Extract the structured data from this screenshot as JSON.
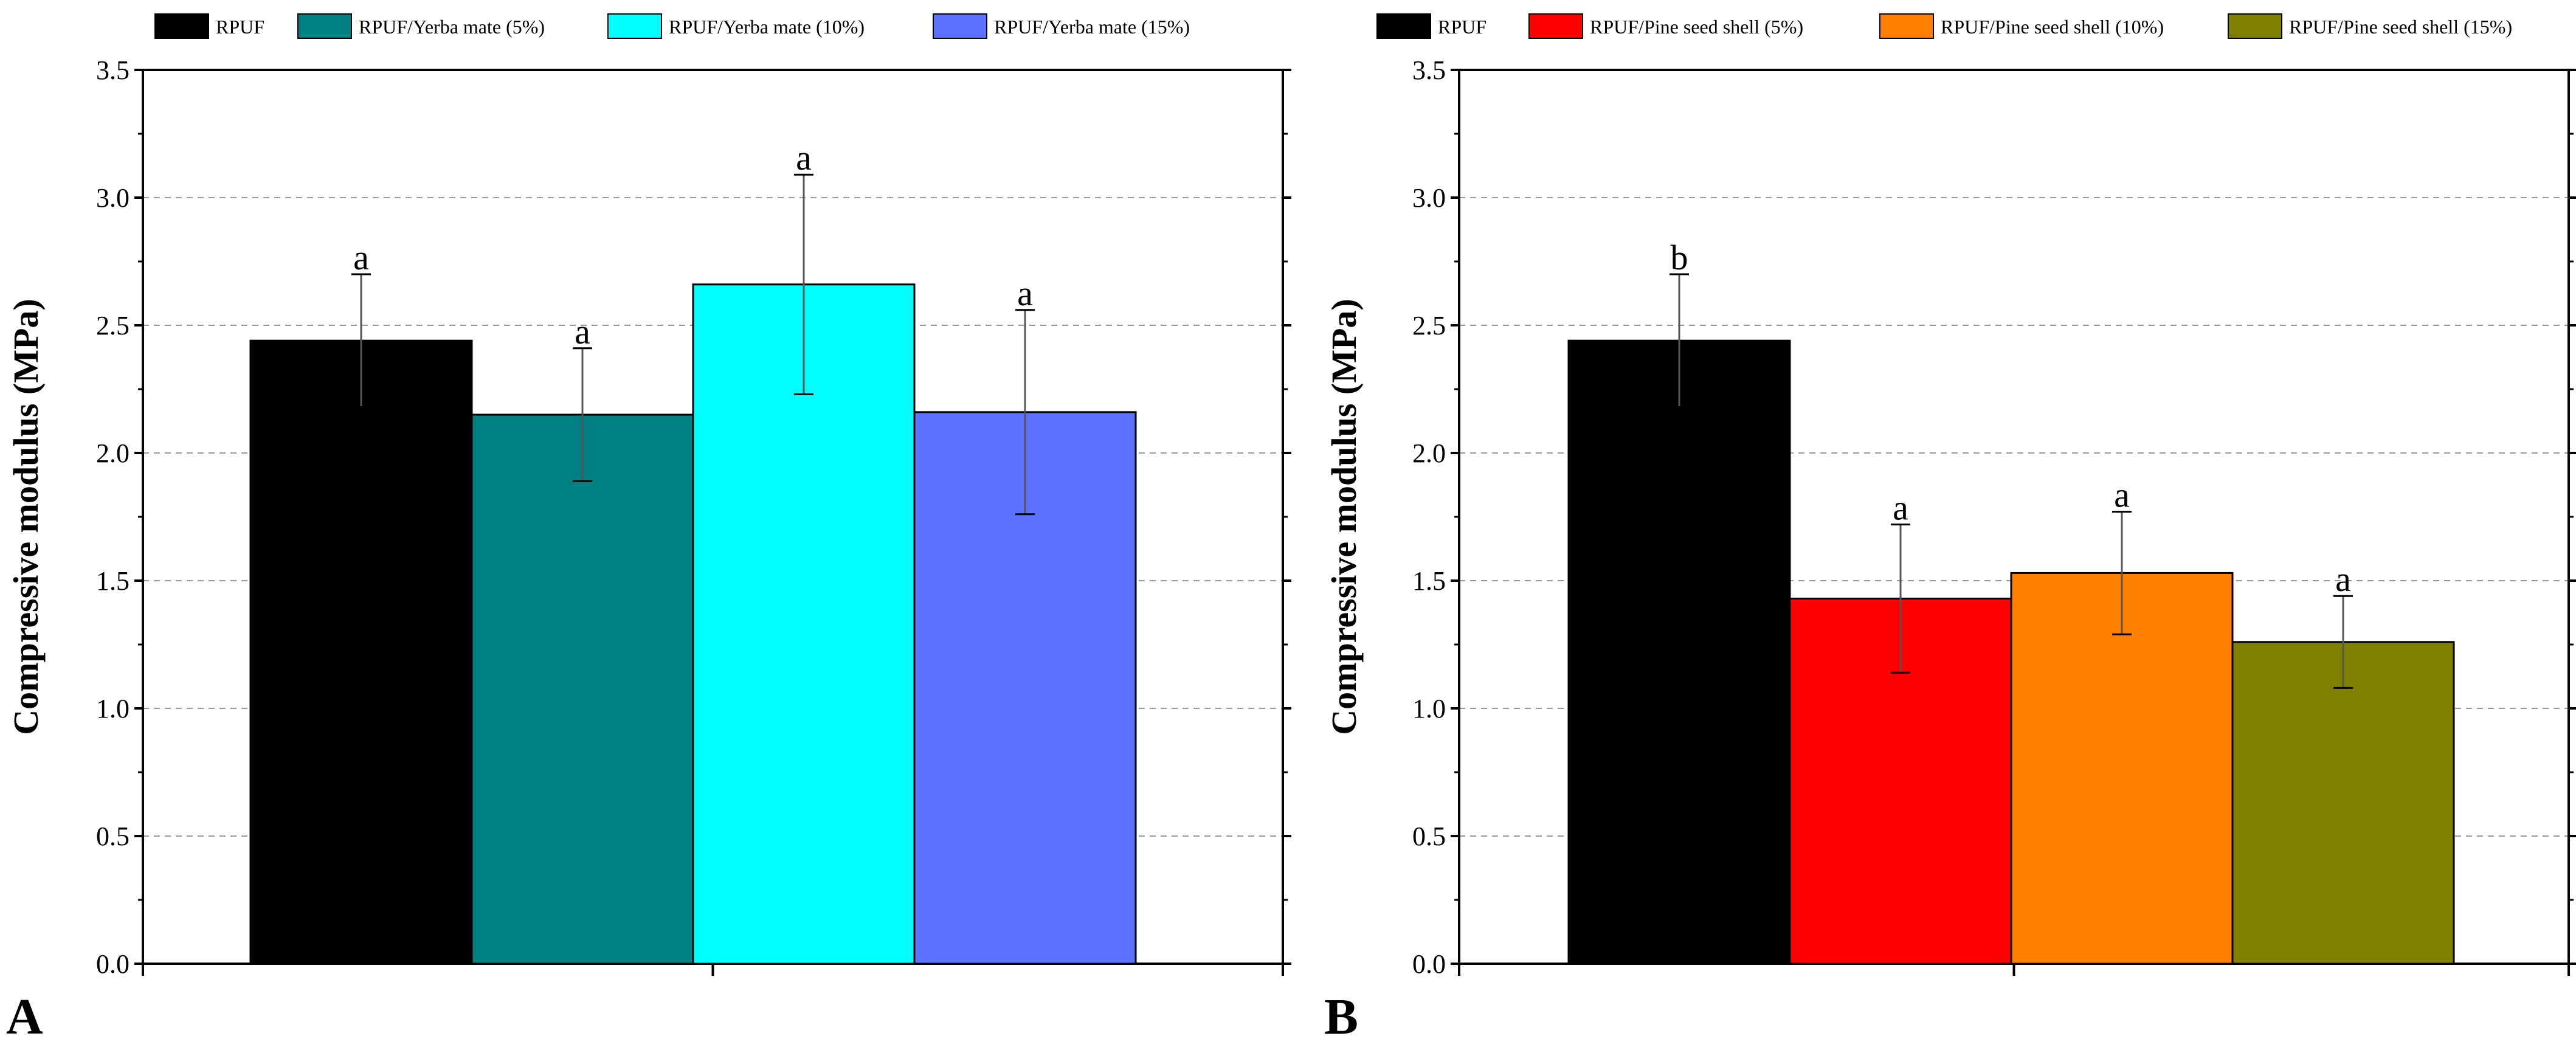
{
  "chart_data": [
    {
      "type": "bar",
      "panel_label": "A",
      "title": "",
      "xlabel": "",
      "ylabel": "Compressive modulus (MPa)",
      "ylim": [
        0,
        3.5
      ],
      "yticks": [
        0.0,
        0.5,
        1.0,
        1.5,
        2.0,
        2.5,
        3.0,
        3.5
      ],
      "ytick_labels": [
        "0.0",
        "0.5",
        "1.0",
        "1.5",
        "2.0",
        "2.5",
        "3.0",
        "3.5"
      ],
      "grid": "horizontal dashed",
      "legend_position": "top",
      "series": [
        {
          "name": "RPUF",
          "value": 2.44,
          "error": 0.26,
          "letter": "a",
          "color": "#000000"
        },
        {
          "name": "RPUF/Yerba mate (5%)",
          "value": 2.15,
          "error": 0.26,
          "letter": "a",
          "color": "#008080"
        },
        {
          "name": "RPUF/Yerba mate (10%)",
          "value": 2.66,
          "error": 0.43,
          "letter": "a",
          "color": "#00FFFF"
        },
        {
          "name": "RPUF/Yerba mate (15%)",
          "value": 2.16,
          "error": 0.4,
          "letter": "a",
          "color": "#5C73FF"
        }
      ]
    },
    {
      "type": "bar",
      "panel_label": "B",
      "title": "",
      "xlabel": "",
      "ylabel": "Compressive modulus (MPa)",
      "ylim": [
        0,
        3.5
      ],
      "yticks": [
        0.0,
        0.5,
        1.0,
        1.5,
        2.0,
        2.5,
        3.0,
        3.5
      ],
      "ytick_labels": [
        "0.0",
        "0.5",
        "1.0",
        "1.5",
        "2.0",
        "2.5",
        "3.0",
        "3.5"
      ],
      "grid": "horizontal dashed",
      "legend_position": "top",
      "series": [
        {
          "name": "RPUF",
          "value": 2.44,
          "error": 0.26,
          "letter": "b",
          "color": "#000000"
        },
        {
          "name": "RPUF/Pine seed shell (5%)",
          "value": 1.43,
          "error": 0.29,
          "letter": "a",
          "color": "#FF0000"
        },
        {
          "name": "RPUF/Pine seed shell (10%)",
          "value": 1.53,
          "error": 0.24,
          "letter": "a",
          "color": "#FF8000"
        },
        {
          "name": "RPUF/Pine seed shell (15%)",
          "value": 1.26,
          "error": 0.18,
          "letter": "a",
          "color": "#808000"
        }
      ]
    }
  ]
}
